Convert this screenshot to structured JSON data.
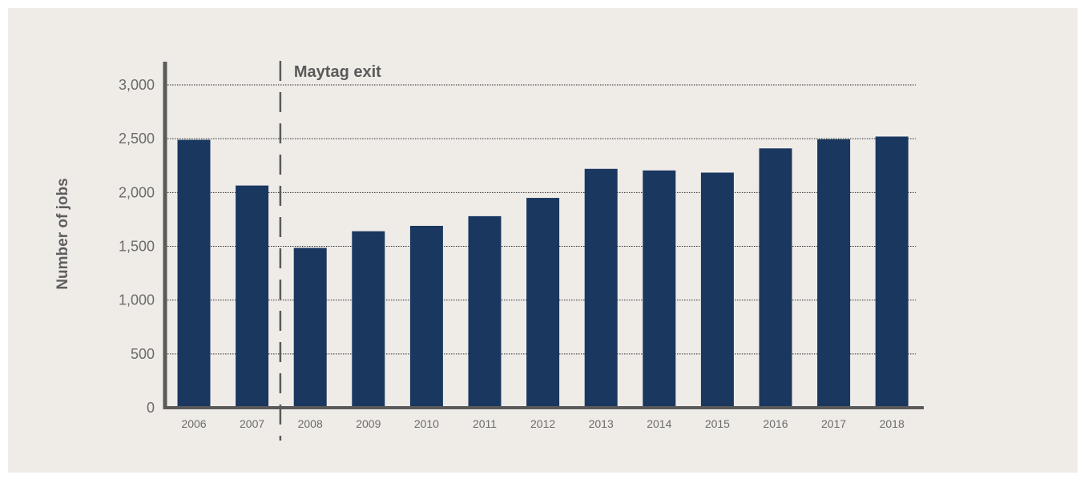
{
  "chart_data": {
    "type": "bar",
    "categories": [
      "2006",
      "2007",
      "2008",
      "2009",
      "2010",
      "2011",
      "2012",
      "2013",
      "2014",
      "2015",
      "2016",
      "2017",
      "2018"
    ],
    "values": [
      2490,
      2065,
      1485,
      1640,
      1690,
      1780,
      1950,
      2220,
      2205,
      2185,
      2410,
      2495,
      2520
    ],
    "ylabel": "Number of jobs",
    "xlabel": "",
    "ylim": [
      0,
      3000
    ],
    "yticks": [
      0,
      500,
      1000,
      1500,
      2000,
      2500,
      3000
    ],
    "ytick_labels": [
      "0",
      "500",
      "1,000",
      "1,500",
      "2,000",
      "2,500",
      "3,000"
    ],
    "grid": true,
    "bar_color": "#1a3760",
    "annotation": {
      "text": "Maytag exit",
      "between": [
        "2007",
        "2008"
      ]
    }
  }
}
